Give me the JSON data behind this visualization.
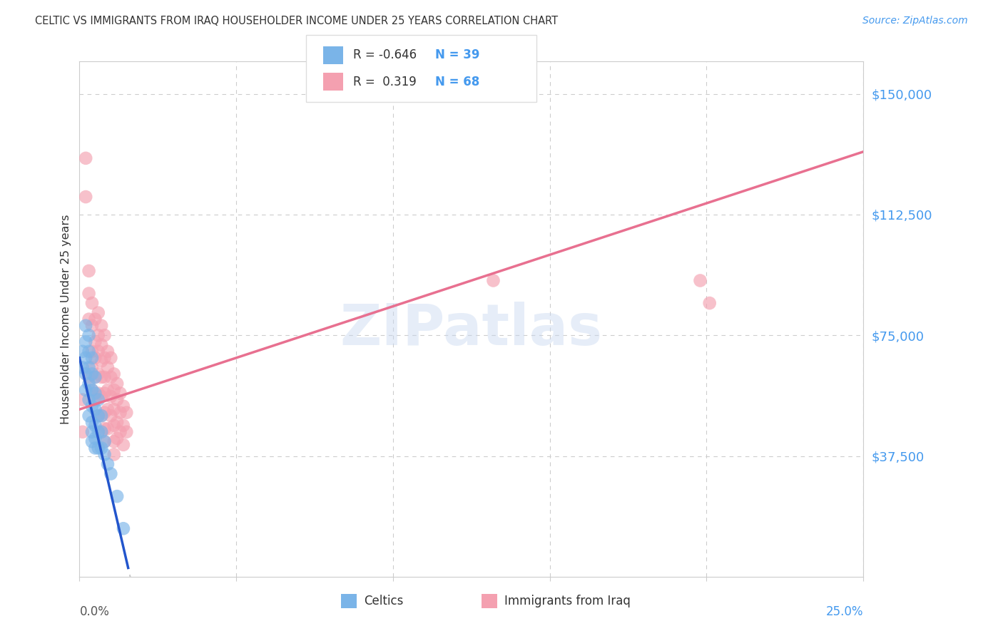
{
  "title": "CELTIC VS IMMIGRANTS FROM IRAQ HOUSEHOLDER INCOME UNDER 25 YEARS CORRELATION CHART",
  "source": "Source: ZipAtlas.com",
  "ylabel": "Householder Income Under 25 years",
  "yticks": [
    0,
    37500,
    75000,
    112500,
    150000
  ],
  "ytick_labels": [
    "",
    "$37,500",
    "$75,000",
    "$112,500",
    "$150,000"
  ],
  "xlim": [
    0,
    0.25
  ],
  "ylim": [
    0,
    160000
  ],
  "background_color": "#ffffff",
  "grid_color": "#cccccc",
  "watermark": "ZIPatlas",
  "celtics_color": "#7ab4e8",
  "iraq_color": "#f4a0b0",
  "celtics_line_color": "#2255cc",
  "iraq_line_color": "#e87090",
  "celtics_x": [
    0.001,
    0.001,
    0.002,
    0.002,
    0.002,
    0.002,
    0.002,
    0.003,
    0.003,
    0.003,
    0.003,
    0.003,
    0.003,
    0.004,
    0.004,
    0.004,
    0.004,
    0.004,
    0.004,
    0.004,
    0.005,
    0.005,
    0.005,
    0.005,
    0.005,
    0.005,
    0.006,
    0.006,
    0.006,
    0.006,
    0.007,
    0.007,
    0.007,
    0.008,
    0.008,
    0.009,
    0.01,
    0.012,
    0.014
  ],
  "celtics_y": [
    70000,
    65000,
    78000,
    73000,
    68000,
    63000,
    58000,
    75000,
    70000,
    65000,
    60000,
    55000,
    50000,
    68000,
    63000,
    58000,
    53000,
    48000,
    45000,
    42000,
    62000,
    57000,
    52000,
    47000,
    43000,
    40000,
    55000,
    50000,
    45000,
    40000,
    50000,
    45000,
    40000,
    42000,
    38000,
    35000,
    32000,
    25000,
    15000
  ],
  "iraq_x": [
    0.001,
    0.001,
    0.002,
    0.002,
    0.003,
    0.003,
    0.003,
    0.003,
    0.004,
    0.004,
    0.004,
    0.004,
    0.004,
    0.005,
    0.005,
    0.005,
    0.005,
    0.005,
    0.006,
    0.006,
    0.006,
    0.006,
    0.006,
    0.006,
    0.007,
    0.007,
    0.007,
    0.007,
    0.007,
    0.007,
    0.007,
    0.008,
    0.008,
    0.008,
    0.008,
    0.008,
    0.008,
    0.008,
    0.009,
    0.009,
    0.009,
    0.009,
    0.009,
    0.01,
    0.01,
    0.01,
    0.01,
    0.011,
    0.011,
    0.011,
    0.011,
    0.011,
    0.011,
    0.012,
    0.012,
    0.012,
    0.012,
    0.013,
    0.013,
    0.013,
    0.014,
    0.014,
    0.014,
    0.015,
    0.015,
    0.132,
    0.198,
    0.201
  ],
  "iraq_y": [
    55000,
    45000,
    130000,
    118000,
    95000,
    88000,
    80000,
    62000,
    85000,
    78000,
    70000,
    65000,
    58000,
    80000,
    73000,
    68000,
    62000,
    55000,
    82000,
    75000,
    70000,
    63000,
    57000,
    50000,
    78000,
    72000,
    67000,
    62000,
    56000,
    50000,
    45000,
    75000,
    68000,
    62000,
    57000,
    51000,
    46000,
    42000,
    70000,
    65000,
    58000,
    52000,
    46000,
    68000,
    62000,
    56000,
    50000,
    63000,
    58000,
    52000,
    47000,
    42000,
    38000,
    60000,
    55000,
    48000,
    43000,
    57000,
    51000,
    45000,
    53000,
    47000,
    41000,
    51000,
    45000,
    92000,
    92000,
    85000
  ],
  "celtics_trendline": {
    "slope": -4200000,
    "intercept": 68000
  },
  "iraq_trendline": {
    "slope": 320000,
    "intercept": 52000
  }
}
